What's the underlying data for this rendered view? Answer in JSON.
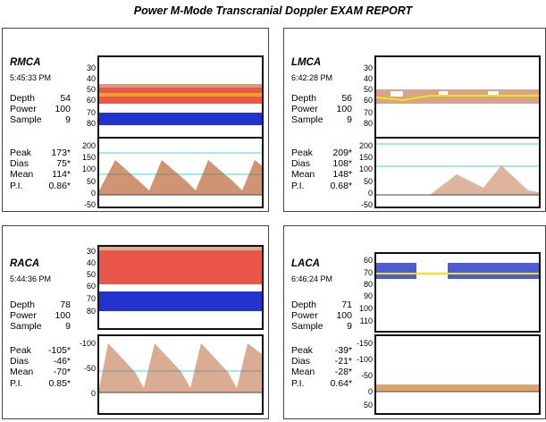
{
  "report_title": "Power M-Mode Transcranial Doppler EXAM REPORT",
  "colors": {
    "mmode_red": "#e8382c",
    "mmode_blue": "#2233cc",
    "envelope_yellow": "#f2e600",
    "baseline_cyan": "#66e0e8",
    "doppler_brown": "#b35a2a"
  },
  "panels": [
    {
      "vessel": "RMCA",
      "time": "5:45:33 PM",
      "settings": [
        {
          "label": "Depth",
          "value": "54"
        },
        {
          "label": "Power",
          "value": "100"
        },
        {
          "label": "Sample",
          "value": "9"
        }
      ],
      "measurements": [
        {
          "label": "Peak",
          "value": "173*"
        },
        {
          "label": "Dias",
          "value": "75*"
        },
        {
          "label": "Mean",
          "value": "114*"
        },
        {
          "label": "P.I.",
          "value": "0.86*"
        }
      ],
      "mmode_axis": [
        "30",
        "40",
        "50",
        "60",
        "70",
        "80"
      ],
      "doppler_axis": [
        "200",
        "150",
        "100",
        "50",
        "0",
        "-50"
      ]
    },
    {
      "vessel": "LMCA",
      "time": "6:42:28 PM",
      "settings": [
        {
          "label": "Depth",
          "value": "56"
        },
        {
          "label": "Power",
          "value": "100"
        },
        {
          "label": "Sample",
          "value": "9"
        }
      ],
      "measurements": [
        {
          "label": "Peak",
          "value": "209*"
        },
        {
          "label": "Dias",
          "value": "108*"
        },
        {
          "label": "Mean",
          "value": "148*"
        },
        {
          "label": "P.I.",
          "value": "0.68*"
        }
      ],
      "mmode_axis": [
        "30",
        "40",
        "50",
        "60",
        "70",
        "80"
      ],
      "doppler_axis": [
        "200",
        "150",
        "100",
        "50",
        "0",
        "-50"
      ]
    },
    {
      "vessel": "RACA",
      "time": "5:44:36 PM",
      "settings": [
        {
          "label": "Depth",
          "value": "78"
        },
        {
          "label": "Power",
          "value": "100"
        },
        {
          "label": "Sample",
          "value": "9"
        }
      ],
      "measurements": [
        {
          "label": "Peak",
          "value": "-105*"
        },
        {
          "label": "Dias",
          "value": "-46*"
        },
        {
          "label": "Mean",
          "value": "-70*"
        },
        {
          "label": "P.I.",
          "value": "0.85*"
        }
      ],
      "mmode_axis": [
        "30",
        "40",
        "50",
        "60",
        "70",
        "80"
      ],
      "doppler_axis": [
        "-100",
        "-50",
        "0"
      ]
    },
    {
      "vessel": "LACA",
      "time": "6:46:24 PM",
      "settings": [
        {
          "label": "Depth",
          "value": "71"
        },
        {
          "label": "Power",
          "value": "100"
        },
        {
          "label": "Sample",
          "value": "9"
        }
      ],
      "measurements": [
        {
          "label": "Peak",
          "value": "-39*"
        },
        {
          "label": "Dias",
          "value": "-21*"
        },
        {
          "label": "Mean",
          "value": "-28*"
        },
        {
          "label": "P.I.",
          "value": "0.64*"
        }
      ],
      "mmode_axis": [
        "60",
        "70",
        "80",
        "90",
        "100",
        "110"
      ],
      "doppler_axis": [
        "-150",
        "-100",
        "-50",
        "0",
        "50"
      ]
    }
  ]
}
